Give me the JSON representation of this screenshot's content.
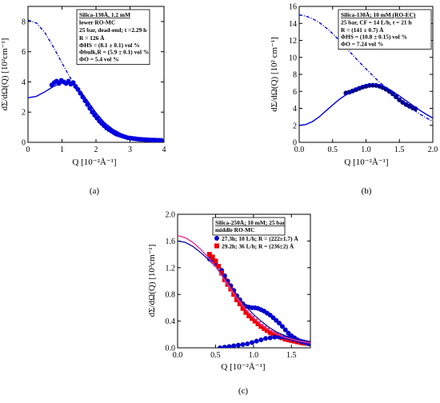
{
  "chart_data": [
    {
      "type": "scatter",
      "panel_label": "(a)",
      "xlabel": "Q [10⁻²Å⁻¹]",
      "ylabel": "dΣ/dΩ(Q) [10²cm⁻¹]",
      "xlim": [
        0,
        4
      ],
      "ylim": [
        0,
        9
      ],
      "xticks": [
        "0",
        "1",
        "2",
        "3",
        "4"
      ],
      "yticks": [
        "0",
        "2",
        "4",
        "6",
        "8"
      ],
      "annotation": [
        "Silica-130Å, 1.2 mM",
        "lower RO-MC",
        "25 bar, dead-end; t =2.29 h",
        "R = 126 Å",
        "ΦHS = (8.1 ± 0.1) vol %",
        "Φbulk,R = (5.9 ± 0.1) vol %",
        "ΦO = 5.4 vol %"
      ],
      "series": [
        {
          "color": "#0000dd",
          "style": "markers",
          "x": [
            0.7,
            0.77,
            0.84,
            0.91,
            0.98,
            1.05,
            1.12,
            1.19,
            1.26,
            1.33,
            1.4,
            1.47,
            1.54,
            1.61,
            1.68,
            1.75,
            1.82,
            1.89,
            1.96,
            2.03,
            2.1,
            2.17,
            2.24,
            2.31,
            2.38,
            2.45,
            2.52,
            2.59,
            2.66,
            2.73,
            2.8,
            2.87,
            2.94,
            3.01,
            3.08,
            3.15,
            3.22,
            3.29,
            3.36,
            3.43,
            3.5,
            3.57,
            3.64,
            3.71,
            3.78,
            3.85,
            3.92
          ],
          "y": [
            3.8,
            3.95,
            4.05,
            3.9,
            4.1,
            4.0,
            3.9,
            4.05,
            3.85,
            3.95,
            3.7,
            3.5,
            3.25,
            3.0,
            2.75,
            2.5,
            2.25,
            2.0,
            1.8,
            1.6,
            1.4,
            1.25,
            1.1,
            0.95,
            0.85,
            0.75,
            0.65,
            0.55,
            0.5,
            0.45,
            0.4,
            0.35,
            0.3,
            0.28,
            0.26,
            0.24,
            0.22,
            0.2,
            0.19,
            0.18,
            0.17,
            0.16,
            0.15,
            0.15,
            0.14,
            0.14,
            0.13
          ]
        },
        {
          "color": "#0000dd",
          "style": "solid",
          "x": [
            0,
            0.25,
            0.5,
            0.75,
            1.0,
            1.25,
            1.5,
            1.75,
            2.0,
            2.25,
            2.5,
            2.75,
            3.0,
            3.25,
            3.5,
            3.75,
            4.0
          ],
          "y": [
            2.95,
            3.05,
            3.35,
            3.7,
            3.95,
            3.95,
            3.5,
            2.75,
            1.95,
            1.3,
            0.85,
            0.55,
            0.35,
            0.25,
            0.18,
            0.14,
            0.12
          ]
        },
        {
          "color": "#0000dd",
          "style": "dashdot",
          "x": [
            0,
            0.25,
            0.5,
            0.75,
            1.0,
            1.25,
            1.5,
            1.75,
            2.0,
            2.25,
            2.5,
            2.75,
            3.0,
            3.25,
            3.5,
            3.75,
            4.0
          ],
          "y": [
            8.1,
            7.9,
            7.25,
            6.3,
            5.25,
            4.25,
            3.5,
            2.75,
            1.95,
            1.3,
            0.85,
            0.55,
            0.35,
            0.25,
            0.18,
            0.14,
            0.12
          ]
        }
      ]
    },
    {
      "type": "scatter",
      "panel_label": "(b)",
      "xlabel": "Q [10⁻²Å⁻¹]",
      "ylabel": "dΣ/dΩ(Q) [10² cm⁻¹]",
      "xlim": [
        0,
        2
      ],
      "ylim": [
        0,
        16
      ],
      "xticks": [
        "0.0",
        "0.5",
        "1.0",
        "1.5",
        "2.0"
      ],
      "yticks": [
        "0",
        "2",
        "4",
        "6",
        "8",
        "10",
        "12",
        "14",
        "16"
      ],
      "annotation": [
        "Silica-130Å; 10 mM (RO-EC)",
        "25 bar, CF = 14 L/h, t = 21 h",
        "R = (141 ± 0.7) Å",
        "ΦHS = (10.8 ± 0.15) vol %",
        "ΦO = 7.24 vol %"
      ],
      "series": [
        {
          "color": "#000080",
          "style": "markers",
          "x": [
            0.7,
            0.75,
            0.8,
            0.85,
            0.9,
            0.95,
            1.0,
            1.05,
            1.1,
            1.15,
            1.2,
            1.25,
            1.3,
            1.35,
            1.4,
            1.45,
            1.5,
            1.55,
            1.6,
            1.65,
            1.7,
            1.74
          ],
          "y": [
            5.8,
            5.9,
            6.05,
            6.2,
            6.35,
            6.5,
            6.6,
            6.7,
            6.72,
            6.7,
            6.6,
            6.45,
            6.25,
            6.0,
            5.7,
            5.35,
            5.0,
            4.7,
            4.45,
            4.25,
            4.05,
            3.95
          ]
        },
        {
          "color": "#0000dd",
          "style": "solid",
          "x": [
            0,
            0.1,
            0.2,
            0.3,
            0.4,
            0.5,
            0.6,
            0.7,
            0.8,
            0.9,
            1.0,
            1.1,
            1.2,
            1.3,
            1.4,
            1.5,
            1.6,
            1.7,
            1.8,
            1.9,
            2.0
          ],
          "y": [
            2.0,
            2.1,
            2.45,
            3.0,
            3.7,
            4.4,
            5.05,
            5.6,
            6.1,
            6.5,
            6.75,
            6.85,
            6.75,
            6.45,
            6.0,
            5.45,
            4.9,
            4.35,
            3.8,
            3.3,
            2.85
          ]
        },
        {
          "color": "#0000dd",
          "style": "dashdot",
          "x": [
            0,
            0.1,
            0.2,
            0.3,
            0.4,
            0.5,
            0.6,
            0.7,
            0.8,
            0.9,
            1.0,
            1.1,
            1.2,
            1.3,
            1.4,
            1.5,
            1.6,
            1.7,
            1.8,
            1.9,
            2.0
          ],
          "y": [
            15.0,
            14.85,
            14.55,
            14.1,
            13.5,
            12.8,
            12.0,
            11.15,
            10.3,
            9.45,
            8.65,
            7.85,
            7.1,
            6.4,
            5.75,
            5.1,
            4.5,
            3.9,
            3.35,
            2.9,
            2.45
          ]
        }
      ]
    },
    {
      "type": "scatter",
      "panel_label": "(c)",
      "xlabel": "Q [10⁻²Å⁻¹]",
      "ylabel": "dΣ/dΩ(Q) [10³cm⁻¹]",
      "xlim": [
        0,
        1.75
      ],
      "ylim": [
        0,
        2.0
      ],
      "xticks": [
        "0.0",
        "0.5",
        "1.0",
        "1.5"
      ],
      "yticks": [
        "0.0",
        "0.4",
        "0.8",
        "1.2",
        "1.6",
        "2.0"
      ],
      "annotation": [
        "Silica-250Å; 10 mM; 25 bar",
        "middle RO-MC"
      ],
      "legend": [
        {
          "label": "27.3h; 10 L/h; R = (222±1.7) Å",
          "color": "#0000cc",
          "marker": "circle"
        },
        {
          "label": "29.2h; 36 L/h; R = (236±2) Å",
          "color": "#ee0000",
          "marker": "square"
        }
      ],
      "series": [
        {
          "color": "#0000cc",
          "style": "markers",
          "x": [
            0.42,
            0.46,
            0.5,
            0.54,
            0.58,
            0.62,
            0.66,
            0.7,
            0.74,
            0.78,
            0.82,
            0.86,
            0.9,
            0.94,
            0.98,
            1.02,
            1.06,
            1.1,
            1.14,
            1.18,
            1.22,
            1.26,
            1.3,
            1.34,
            1.38,
            1.42,
            1.46,
            1.5,
            1.54,
            1.58,
            1.62,
            1.66,
            1.7,
            1.74
          ],
          "y": [
            1.33,
            1.3,
            1.25,
            1.22,
            1.16,
            1.08,
            1.0,
            0.93,
            0.86,
            0.78,
            0.72,
            0.66,
            0.62,
            0.61,
            0.6,
            0.6,
            0.59,
            0.57,
            0.55,
            0.52,
            0.49,
            0.45,
            0.41,
            0.37,
            0.32,
            0.27,
            0.22,
            0.18,
            0.15,
            0.12,
            0.1,
            0.09,
            0.08,
            0.07
          ]
        },
        {
          "color": "#ee0000",
          "style": "markers",
          "x": [
            0.42,
            0.46,
            0.5,
            0.54,
            0.58,
            0.62,
            0.66,
            0.7,
            0.74,
            0.78,
            0.82,
            0.86,
            0.9,
            0.94,
            0.98,
            1.02,
            1.06,
            1.1,
            1.14,
            1.18,
            1.22,
            1.26,
            1.3,
            1.34,
            1.38,
            1.42,
            1.46,
            1.5,
            1.54,
            1.58,
            1.62,
            1.66,
            1.7,
            1.74
          ],
          "y": [
            1.4,
            1.36,
            1.3,
            1.22,
            1.12,
            1.02,
            0.95,
            0.88,
            0.8,
            0.72,
            0.66,
            0.59,
            0.53,
            0.48,
            0.44,
            0.4,
            0.36,
            0.32,
            0.29,
            0.26,
            0.23,
            0.21,
            0.19,
            0.17,
            0.15,
            0.13,
            0.12,
            0.11,
            0.1,
            0.09,
            0.08,
            0.07,
            0.07,
            0.06
          ]
        },
        {
          "color": "#0000cc",
          "style": "markers",
          "x": [
            0.56,
            0.62,
            0.68,
            0.74,
            0.8,
            0.86,
            0.92,
            0.98,
            1.04,
            1.1,
            1.16,
            1.22,
            1.28,
            1.34,
            1.4,
            1.46,
            1.52,
            1.58,
            1.64,
            1.7,
            1.74
          ],
          "y": [
            0.0,
            0.01,
            0.02,
            0.03,
            0.04,
            0.05,
            0.06,
            0.08,
            0.1,
            0.12,
            0.14,
            0.15,
            0.16,
            0.16,
            0.16,
            0.15,
            0.13,
            0.11,
            0.09,
            0.07,
            0.06
          ]
        },
        {
          "color": "#1a1aa8",
          "style": "solid",
          "x": [
            0,
            0.1,
            0.2,
            0.3,
            0.4,
            0.5,
            0.6,
            0.7,
            0.8,
            0.9,
            1.0,
            1.1,
            1.2,
            1.3,
            1.4,
            1.5,
            1.6,
            1.75
          ],
          "y": [
            1.6,
            1.58,
            1.52,
            1.43,
            1.33,
            1.22,
            1.08,
            0.92,
            0.76,
            0.62,
            0.5,
            0.4,
            0.31,
            0.24,
            0.19,
            0.15,
            0.12,
            0.08
          ]
        },
        {
          "color": "#ee3399",
          "style": "solid",
          "x": [
            0,
            0.1,
            0.2,
            0.3,
            0.4,
            0.5,
            0.6,
            0.7,
            0.8,
            0.9,
            1.0,
            1.1,
            1.2,
            1.3,
            1.4,
            1.5,
            1.6,
            1.75
          ],
          "y": [
            1.68,
            1.65,
            1.58,
            1.48,
            1.36,
            1.22,
            1.05,
            0.88,
            0.72,
            0.57,
            0.45,
            0.35,
            0.27,
            0.21,
            0.16,
            0.13,
            0.1,
            0.07
          ]
        }
      ]
    }
  ]
}
